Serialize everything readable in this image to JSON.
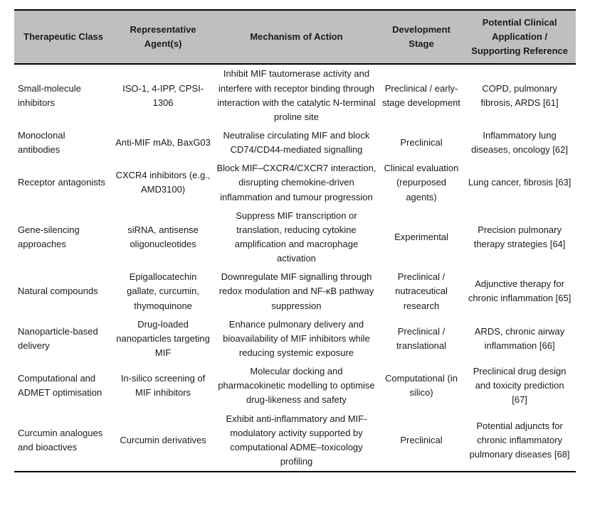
{
  "table": {
    "colors": {
      "header_bg": "#bfbfbf",
      "rule": "#000000",
      "text": "#1a1a1a",
      "page_bg": "#ffffff"
    },
    "columns": [
      {
        "label": "Therapeutic Class"
      },
      {
        "label": "Representative Agent(s)"
      },
      {
        "label": "Mechanism of Action"
      },
      {
        "label": "Development Stage"
      },
      {
        "label": "Potential Clinical Application / Supporting Reference"
      }
    ],
    "rows": [
      {
        "cells": [
          "Small-molecule inhibitors",
          "ISO-1, 4-IPP, CPSI-1306",
          "Inhibit MIF tautomerase activity and interfere with receptor binding through interaction with the catalytic N-terminal proline site",
          "Preclinical / early-stage development",
          "COPD, pulmonary fibrosis, ARDS [61]"
        ]
      },
      {
        "cells": [
          "Monoclonal antibodies",
          "Anti-MIF mAb, BaxG03",
          "Neutralise circulating MIF and block CD74/CD44-mediated signalling",
          "Preclinical",
          "Inflammatory lung diseases, oncology [62]"
        ]
      },
      {
        "cells": [
          "Receptor antagonists",
          "CXCR4 inhibitors (e.g., AMD3100)",
          "Block MIF–CXCR4/CXCR7 interaction, disrupting chemokine-driven inflammation and tumour progression",
          "Clinical evaluation (repurposed agents)",
          "Lung cancer, fibrosis [63]"
        ]
      },
      {
        "cells": [
          "Gene-silencing approaches",
          "siRNA, antisense oligonucleotides",
          "Suppress MIF transcription or translation, reducing cytokine amplification and macrophage activation",
          "Experimental",
          "Precision pulmonary therapy strategies [64]"
        ]
      },
      {
        "cells": [
          "Natural compounds",
          "Epigallocatechin gallate, curcumin, thymoquinone",
          "Downregulate MIF signalling through redox modulation and NF-κB pathway suppression",
          "Preclinical / nutraceutical research",
          "Adjunctive therapy for chronic inflammation [65]"
        ]
      },
      {
        "cells": [
          "Nanoparticle-based delivery",
          "Drug-loaded nanoparticles targeting MIF",
          "Enhance pulmonary delivery and bioavailability of MIF inhibitors while reducing systemic exposure",
          "Preclinical / translational",
          "ARDS, chronic airway inflammation [66]"
        ]
      },
      {
        "cells": [
          "Computational and ADMET optimisation",
          "In-silico screening of MIF inhibitors",
          "Molecular docking and pharmacokinetic modelling to optimise drug-likeness and safety",
          "Computational (in silico)",
          "Preclinical drug design and toxicity prediction [67]"
        ]
      },
      {
        "cells": [
          "Curcumin analogues and bioactives",
          "Curcumin derivatives",
          "Exhibit anti-inflammatory and MIF-modulatory activity supported by computational ADME–toxicology profiling",
          "Preclinical",
          "Potential adjuncts for chronic inflammatory pulmonary diseases [68]"
        ]
      }
    ]
  }
}
